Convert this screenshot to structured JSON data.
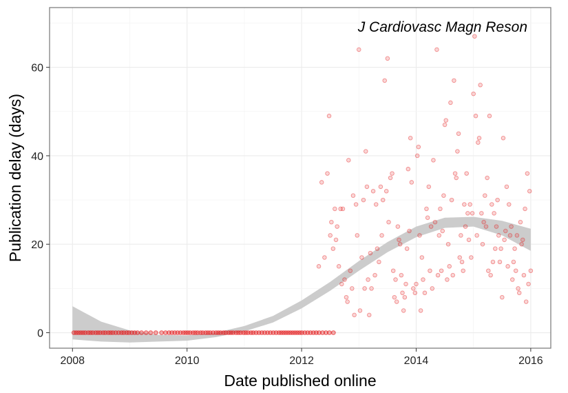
{
  "chart_data": {
    "type": "scatter",
    "annotation": "J Cardiovasc Magn Reson",
    "xlabel": "Date published online",
    "ylabel": "Publication delay (days)",
    "xlim": [
      2007.6,
      2016.35
    ],
    "ylim": [
      -3.5,
      73.5
    ],
    "x_ticks": [
      2008,
      2010,
      2012,
      2014,
      2016
    ],
    "x_tick_labels": [
      "2008",
      "2010",
      "2012",
      "2014",
      "2016"
    ],
    "y_ticks": [
      0,
      20,
      40,
      60
    ],
    "y_tick_labels": [
      "0",
      "20",
      "40",
      "60"
    ],
    "grid": true,
    "point_color": "#e41a1c",
    "band_color": "#cccccc",
    "smooth_band": [
      {
        "x": 2008.0,
        "lo": -1.5,
        "hi": 6.0
      },
      {
        "x": 2008.5,
        "lo": -2.0,
        "hi": 2.5
      },
      {
        "x": 2009.0,
        "lo": -2.2,
        "hi": 0.5
      },
      {
        "x": 2009.5,
        "lo": -2.0,
        "hi": -0.5
      },
      {
        "x": 2010.0,
        "lo": -1.8,
        "hi": -0.6
      },
      {
        "x": 2010.5,
        "lo": -1.0,
        "hi": 0.0
      },
      {
        "x": 2011.0,
        "lo": 0.3,
        "hi": 1.5
      },
      {
        "x": 2011.5,
        "lo": 2.3,
        "hi": 3.8
      },
      {
        "x": 2012.0,
        "lo": 5.5,
        "hi": 7.3
      },
      {
        "x": 2012.5,
        "lo": 9.5,
        "hi": 11.5
      },
      {
        "x": 2013.0,
        "lo": 14.0,
        "hi": 16.2
      },
      {
        "x": 2013.5,
        "lo": 18.2,
        "hi": 20.5
      },
      {
        "x": 2014.0,
        "lo": 21.6,
        "hi": 24.0
      },
      {
        "x": 2014.5,
        "lo": 23.7,
        "hi": 26.0
      },
      {
        "x": 2015.0,
        "lo": 24.0,
        "hi": 26.2
      },
      {
        "x": 2015.5,
        "lo": 22.0,
        "hi": 25.3
      },
      {
        "x": 2016.0,
        "lo": 18.5,
        "hi": 23.5
      }
    ],
    "zero_points_x": [
      2008.02,
      2008.06,
      2008.1,
      2008.14,
      2008.18,
      2008.22,
      2008.27,
      2008.31,
      2008.35,
      2008.4,
      2008.44,
      2008.48,
      2008.53,
      2008.57,
      2008.62,
      2008.66,
      2008.7,
      2008.75,
      2008.8,
      2008.85,
      2008.89,
      2008.94,
      2008.98,
      2009.03,
      2009.08,
      2009.13,
      2009.2,
      2009.28,
      2009.36,
      2009.45,
      2009.55,
      2009.62,
      2009.68,
      2009.73,
      2009.78,
      2009.83,
      2009.88,
      2009.93,
      2009.97,
      2010.01,
      2010.05,
      2010.1,
      2010.14,
      2010.18,
      2010.23,
      2010.27,
      2010.32,
      2010.36,
      2010.4,
      2010.45,
      2010.5,
      2010.54,
      2010.58,
      2010.63,
      2010.67,
      2010.72,
      2010.76,
      2010.8,
      2010.85,
      2010.89,
      2010.93,
      2010.98,
      2011.02,
      2011.06,
      2011.11,
      2011.15,
      2011.2,
      2011.25,
      2011.3,
      2011.35,
      2011.4,
      2011.45,
      2011.5,
      2011.55,
      2011.6,
      2011.64,
      2011.68,
      2011.72,
      2011.76,
      2011.8,
      2011.84,
      2011.88,
      2011.92,
      2011.96,
      2012.0,
      2012.05,
      2012.1,
      2012.15,
      2012.2,
      2012.25,
      2012.3,
      2012.36,
      2012.42,
      2012.48,
      2012.55
    ],
    "points": [
      [
        2012.3,
        15
      ],
      [
        2012.35,
        34
      ],
      [
        2012.4,
        17
      ],
      [
        2012.45,
        36
      ],
      [
        2012.48,
        49
      ],
      [
        2012.5,
        22
      ],
      [
        2012.52,
        25
      ],
      [
        2012.55,
        19
      ],
      [
        2012.58,
        28
      ],
      [
        2012.6,
        21
      ],
      [
        2012.62,
        24
      ],
      [
        2012.65,
        15
      ],
      [
        2012.68,
        28
      ],
      [
        2012.7,
        11
      ],
      [
        2012.72,
        28
      ],
      [
        2012.75,
        12
      ],
      [
        2012.78,
        8
      ],
      [
        2012.8,
        7
      ],
      [
        2012.82,
        39
      ],
      [
        2012.85,
        14
      ],
      [
        2012.88,
        10
      ],
      [
        2012.9,
        31
      ],
      [
        2012.92,
        4
      ],
      [
        2012.95,
        29
      ],
      [
        2012.97,
        22
      ],
      [
        2013.0,
        64
      ],
      [
        2013.02,
        5
      ],
      [
        2013.05,
        17
      ],
      [
        2013.08,
        30
      ],
      [
        2013.1,
        10
      ],
      [
        2013.12,
        41
      ],
      [
        2013.14,
        33
      ],
      [
        2013.16,
        12
      ],
      [
        2013.18,
        4
      ],
      [
        2013.2,
        18
      ],
      [
        2013.22,
        10
      ],
      [
        2013.25,
        32
      ],
      [
        2013.28,
        13
      ],
      [
        2013.3,
        29
      ],
      [
        2013.32,
        19
      ],
      [
        2013.35,
        16
      ],
      [
        2013.38,
        33
      ],
      [
        2013.4,
        22
      ],
      [
        2013.42,
        30
      ],
      [
        2013.45,
        57
      ],
      [
        2013.48,
        32
      ],
      [
        2013.5,
        62
      ],
      [
        2013.52,
        25
      ],
      [
        2013.55,
        35
      ],
      [
        2013.58,
        36
      ],
      [
        2013.6,
        14
      ],
      [
        2013.62,
        8
      ],
      [
        2013.64,
        12
      ],
      [
        2013.66,
        7
      ],
      [
        2013.68,
        24
      ],
      [
        2013.7,
        21
      ],
      [
        2013.72,
        20
      ],
      [
        2013.74,
        13
      ],
      [
        2013.76,
        9
      ],
      [
        2013.78,
        5
      ],
      [
        2013.8,
        8
      ],
      [
        2013.82,
        11
      ],
      [
        2013.84,
        19
      ],
      [
        2013.86,
        37
      ],
      [
        2013.88,
        23
      ],
      [
        2013.9,
        44
      ],
      [
        2013.92,
        34
      ],
      [
        2013.95,
        10
      ],
      [
        2013.98,
        9
      ],
      [
        2014.0,
        11
      ],
      [
        2014.02,
        40
      ],
      [
        2014.04,
        42
      ],
      [
        2014.06,
        22
      ],
      [
        2014.08,
        5
      ],
      [
        2014.1,
        17
      ],
      [
        2014.12,
        12
      ],
      [
        2014.15,
        9
      ],
      [
        2014.18,
        28
      ],
      [
        2014.2,
        26
      ],
      [
        2014.22,
        33
      ],
      [
        2014.24,
        14
      ],
      [
        2014.26,
        24
      ],
      [
        2014.28,
        10
      ],
      [
        2014.3,
        39
      ],
      [
        2014.33,
        25
      ],
      [
        2014.36,
        64
      ],
      [
        2014.38,
        13
      ],
      [
        2014.4,
        22
      ],
      [
        2014.42,
        28
      ],
      [
        2014.44,
        14
      ],
      [
        2014.46,
        23
      ],
      [
        2014.48,
        31
      ],
      [
        2014.5,
        47
      ],
      [
        2014.52,
        48
      ],
      [
        2014.54,
        12
      ],
      [
        2014.56,
        20
      ],
      [
        2014.58,
        15
      ],
      [
        2014.6,
        52
      ],
      [
        2014.62,
        30
      ],
      [
        2014.64,
        13
      ],
      [
        2014.66,
        57
      ],
      [
        2014.68,
        36
      ],
      [
        2014.7,
        35
      ],
      [
        2014.72,
        41
      ],
      [
        2014.74,
        45
      ],
      [
        2014.76,
        17
      ],
      [
        2014.78,
        22
      ],
      [
        2014.8,
        16
      ],
      [
        2014.82,
        14
      ],
      [
        2014.84,
        29
      ],
      [
        2014.86,
        24
      ],
      [
        2014.88,
        36
      ],
      [
        2014.9,
        27
      ],
      [
        2014.92,
        21
      ],
      [
        2014.94,
        29
      ],
      [
        2014.96,
        17
      ],
      [
        2014.98,
        27
      ],
      [
        2015.0,
        54
      ],
      [
        2015.02,
        67
      ],
      [
        2015.04,
        49
      ],
      [
        2015.06,
        22
      ],
      [
        2015.08,
        43
      ],
      [
        2015.1,
        44
      ],
      [
        2015.12,
        56
      ],
      [
        2015.14,
        27
      ],
      [
        2015.16,
        20
      ],
      [
        2015.18,
        25
      ],
      [
        2015.2,
        31
      ],
      [
        2015.22,
        24
      ],
      [
        2015.24,
        35
      ],
      [
        2015.26,
        14
      ],
      [
        2015.28,
        49
      ],
      [
        2015.3,
        13
      ],
      [
        2015.32,
        29
      ],
      [
        2015.34,
        16
      ],
      [
        2015.36,
        27
      ],
      [
        2015.38,
        19
      ],
      [
        2015.4,
        24
      ],
      [
        2015.42,
        30
      ],
      [
        2015.44,
        22
      ],
      [
        2015.46,
        16
      ],
      [
        2015.48,
        19
      ],
      [
        2015.5,
        8
      ],
      [
        2015.52,
        44
      ],
      [
        2015.54,
        21
      ],
      [
        2015.56,
        23
      ],
      [
        2015.58,
        33
      ],
      [
        2015.6,
        15
      ],
      [
        2015.62,
        29
      ],
      [
        2015.64,
        22
      ],
      [
        2015.66,
        24
      ],
      [
        2015.68,
        12
      ],
      [
        2015.7,
        16
      ],
      [
        2015.72,
        19
      ],
      [
        2015.74,
        14
      ],
      [
        2015.76,
        22
      ],
      [
        2015.78,
        10
      ],
      [
        2015.8,
        9
      ],
      [
        2015.82,
        25
      ],
      [
        2015.84,
        20
      ],
      [
        2015.86,
        21
      ],
      [
        2015.88,
        13
      ],
      [
        2015.9,
        28
      ],
      [
        2015.92,
        7
      ],
      [
        2015.94,
        36
      ],
      [
        2015.96,
        11
      ],
      [
        2015.98,
        32
      ],
      [
        2016.0,
        14
      ]
    ]
  }
}
